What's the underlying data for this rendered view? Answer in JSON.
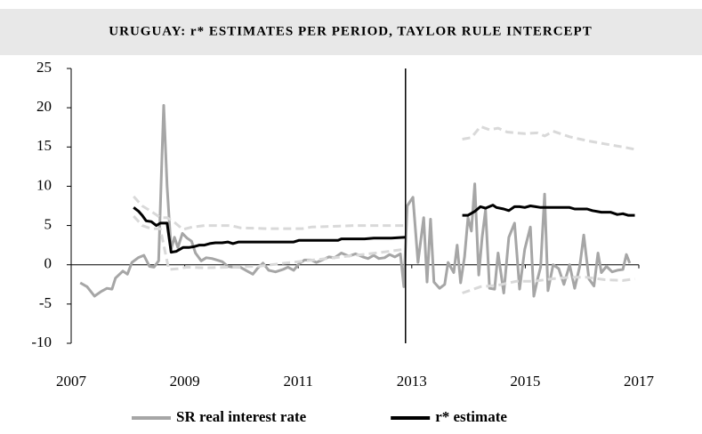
{
  "chart_data": {
    "type": "line",
    "title": "URUGUAY: r* ESTIMATES PER PERIOD, TAYLOR RULE INTERCEPT",
    "xlim": [
      2007,
      2017
    ],
    "xticks": [
      2007,
      2009,
      2011,
      2013,
      2015,
      2017
    ],
    "ylim": [
      -10,
      25
    ],
    "yticks": [
      -10,
      -5,
      0,
      5,
      10,
      15,
      20,
      25
    ],
    "period_break": 2012.89,
    "series": [
      {
        "name": "SR real interest rate",
        "color": "#a6a6a6",
        "dashed": false,
        "x": [
          2007.16,
          2007.28,
          2007.41,
          2007.53,
          2007.63,
          2007.72,
          2007.78,
          2007.91,
          2007.99,
          2008.07,
          2008.18,
          2008.28,
          2008.38,
          2008.46,
          2008.54,
          2008.6,
          2008.63,
          2008.69,
          2008.76,
          2008.82,
          2008.88,
          2008.96,
          2009.04,
          2009.12,
          2009.19,
          2009.29,
          2009.38,
          2009.48,
          2009.57,
          2009.66,
          2009.76,
          2009.85,
          2009.98,
          2010.1,
          2010.2,
          2010.29,
          2010.38,
          2010.48,
          2010.6,
          2010.73,
          2010.82,
          2010.92,
          2011.01,
          2011.11,
          2011.23,
          2011.32,
          2011.42,
          2011.54,
          2011.64,
          2011.76,
          2011.89,
          2012.01,
          2012.14,
          2012.23,
          2012.33,
          2012.42,
          2012.52,
          2012.61,
          2012.7,
          2012.8,
          2012.86,
          2012.92,
          2013.02,
          2013.11,
          2013.21,
          2013.27,
          2013.33,
          2013.39,
          2013.49,
          2013.58,
          2013.64,
          2013.74,
          2013.8,
          2013.86,
          2013.93,
          2013.99,
          2014.05,
          2014.11,
          2014.18,
          2014.24,
          2014.3,
          2014.37,
          2014.46,
          2014.52,
          2014.62,
          2014.71,
          2014.81,
          2014.9,
          2014.99,
          2015.09,
          2015.15,
          2015.21,
          2015.27,
          2015.34,
          2015.4,
          2015.49,
          2015.59,
          2015.68,
          2015.78,
          2015.87,
          2015.96,
          2016.03,
          2016.12,
          2016.21,
          2016.28,
          2016.34,
          2016.43,
          2016.53,
          2016.62,
          2016.72,
          2016.78,
          2016.84
        ],
        "values": [
          -2.3,
          -2.8,
          -4.0,
          -3.4,
          -3.0,
          -3.1,
          -1.7,
          -0.8,
          -1.2,
          0.3,
          0.9,
          1.2,
          -0.2,
          -0.3,
          0.5,
          14,
          20.3,
          10,
          2,
          3.5,
          2.2,
          4.0,
          3.4,
          3.0,
          1.5,
          0.5,
          0.9,
          0.8,
          0.6,
          0.4,
          -0.2,
          -0.3,
          -0.3,
          -0.8,
          -1.2,
          -0.4,
          0.2,
          -0.7,
          -0.9,
          -0.6,
          -0.3,
          -0.7,
          0.1,
          0.6,
          0.6,
          0.3,
          0.6,
          1.0,
          0.9,
          1.5,
          1.1,
          1.4,
          1.0,
          0.8,
          1.2,
          0.8,
          0.9,
          1.3,
          1.0,
          1.4,
          -2.8,
          7.5,
          8.6,
          0.3,
          6,
          -2.2,
          5.8,
          -2.2,
          -3.0,
          -2.5,
          0.3,
          -1,
          2.5,
          -2.3,
          1,
          6,
          4.3,
          10.3,
          -1.3,
          3.5,
          7,
          -3,
          -3.1,
          1.5,
          -3.6,
          3.5,
          5.3,
          -3.1,
          2,
          4.8,
          -4,
          -2,
          -0.3,
          9,
          -3.3,
          0,
          -0.5,
          -2.5,
          0,
          -3,
          -0.2,
          3.8,
          -1.8,
          -2.7,
          1.5,
          -1,
          -0.2,
          -0.9,
          -0.7,
          -0.6,
          1.3,
          0.2
        ]
      },
      {
        "color": "#d9d9d9",
        "dashed": true,
        "x": [
          2008.1,
          2008.25,
          2008.41,
          2008.57,
          2008.69,
          2008.82,
          2008.97,
          2009.13,
          2009.35,
          2009.82,
          2009.98,
          2010.45,
          2011.07,
          2011.23,
          2012.01,
          2012.89,
          null,
          2013.89,
          2014.05,
          2014.21,
          2014.37,
          2014.52,
          2014.68,
          2014.99,
          2015.21,
          2015.34,
          2015.49,
          2015.78,
          2016.09,
          2016.4,
          2016.72,
          2016.93
        ],
        "values": [
          8.7,
          7.5,
          6.8,
          6.0,
          6.0,
          5.4,
          4.5,
          4.8,
          5.0,
          5.0,
          4.7,
          4.6,
          4.6,
          4.8,
          5.0,
          5.0,
          null,
          16,
          16.2,
          17.6,
          17.2,
          17.4,
          16.9,
          16.7,
          16.8,
          16.4,
          17,
          16.3,
          15.8,
          15.4,
          15.0,
          14.7
        ]
      },
      {
        "color": "#d9d9d9",
        "dashed": true,
        "x": [
          2008.1,
          2008.25,
          2008.41,
          2008.57,
          2008.72,
          2008.88,
          2009.04,
          2009.35,
          2009.82,
          2010.29,
          2010.76,
          2011.39,
          2012.01,
          2012.48,
          2012.89,
          null,
          2013.89,
          2014.05,
          2014.21,
          2014.52,
          2014.84,
          2015.15,
          2015.46,
          2015.78,
          2016.09,
          2016.4,
          2016.72,
          2016.93
        ],
        "values": [
          6.2,
          5.0,
          4.6,
          4.6,
          -0.6,
          -0.5,
          -0.3,
          -0.4,
          -0.3,
          -0.2,
          0.2,
          0.7,
          1.2,
          1.6,
          2.0,
          null,
          -3.6,
          -3.2,
          -2.8,
          -2.6,
          -2.1,
          -2.1,
          -1.8,
          -1.6,
          -1.6,
          -1.9,
          -2.0,
          -1.8
        ]
      },
      {
        "name": "r* estimate",
        "color": "#000000",
        "dashed": false,
        "x": [
          2008.1,
          2008.19,
          2008.25,
          2008.32,
          2008.41,
          2008.5,
          2008.57,
          2008.69,
          2008.76,
          2008.85,
          2008.97,
          2009.07,
          2009.16,
          2009.26,
          2009.35,
          2009.44,
          2009.54,
          2009.66,
          2009.76,
          2009.85,
          2009.95,
          2010.45,
          2010.92,
          2011.01,
          2011.7,
          2011.76,
          2012.17,
          2012.33,
          2012.64,
          2012.89,
          null,
          2013.89,
          2013.99,
          2014.11,
          2014.21,
          2014.3,
          2014.43,
          2014.49,
          2014.62,
          2014.71,
          2014.81,
          2014.9,
          2014.99,
          2015.09,
          2015.18,
          2015.27,
          2015.37,
          2015.78,
          2015.87,
          2016.09,
          2016.18,
          2016.34,
          2016.5,
          2016.62,
          2016.72,
          2016.81,
          2016.93
        ],
        "values": [
          7.3,
          6.8,
          6.3,
          5.6,
          5.5,
          5.0,
          5.3,
          5.3,
          1.6,
          1.7,
          2.2,
          2.2,
          2.3,
          2.5,
          2.5,
          2.7,
          2.8,
          2.8,
          2.9,
          2.7,
          2.9,
          2.9,
          2.9,
          3.1,
          3.1,
          3.3,
          3.3,
          3.4,
          3.4,
          3.5,
          null,
          6.3,
          6.3,
          6.8,
          7.4,
          7.2,
          7.6,
          7.3,
          7.1,
          6.9,
          7.4,
          7.4,
          7.3,
          7.5,
          7.4,
          7.3,
          7.3,
          7.3,
          7.1,
          7.1,
          6.9,
          6.7,
          6.7,
          6.4,
          6.5,
          6.3,
          6.3
        ]
      }
    ]
  }
}
